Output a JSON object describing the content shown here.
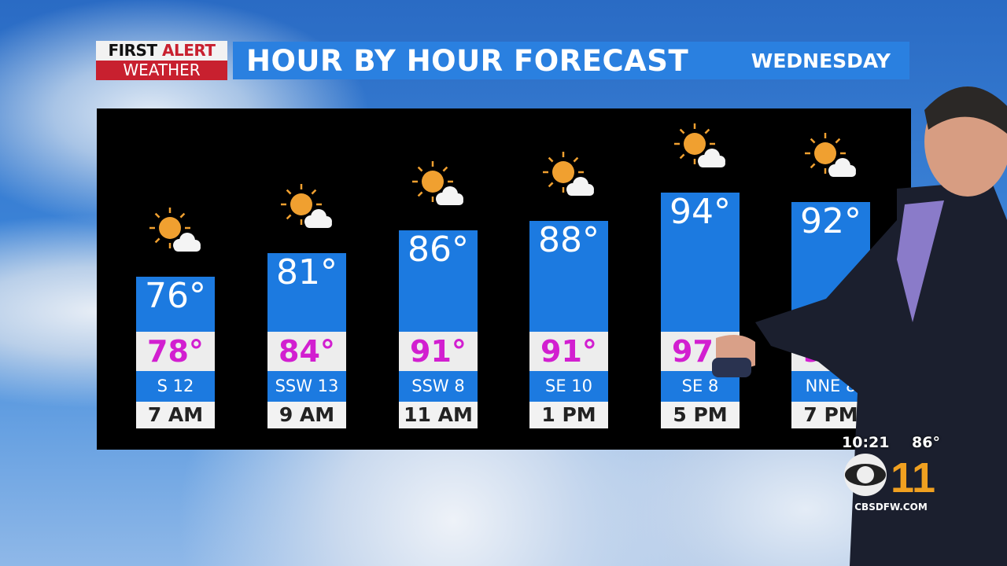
{
  "logo": {
    "line1a": "FIRST",
    "line1b": "ALERT",
    "line2": "WEATHER"
  },
  "header": {
    "title": "HOUR BY HOUR FORECAST",
    "day": "WEDNESDAY"
  },
  "chart_data": {
    "type": "bar",
    "categories": [
      "7 AM",
      "9 AM",
      "11 AM",
      "1 PM",
      "5 PM",
      "7 PM"
    ],
    "series": [
      {
        "name": "temperature",
        "values": [
          76,
          81,
          86,
          88,
          94,
          92
        ]
      },
      {
        "name": "feels like",
        "values": [
          78,
          84,
          91,
          91,
          97,
          99
        ]
      }
    ],
    "labels": {
      "temp": [
        "76°",
        "81°",
        "86°",
        "88°",
        "94°",
        "92°"
      ],
      "feels": [
        "78°",
        "84°",
        "91°",
        "91°",
        "97°",
        "99°"
      ]
    },
    "wind": [
      "S 12",
      "SSW 13",
      "SSW 8",
      "SE 10",
      "SE 8",
      "NNE 8"
    ],
    "icons": [
      "mostly-sunny-icon",
      "mostly-sunny-icon",
      "mostly-sunny-icon",
      "mostly-sunny-icon",
      "mostly-sunny-icon",
      "mostly-sunny-icon"
    ],
    "colors": {
      "bar": "#1c7ae0",
      "feels": "#d21fd0",
      "panel": "#000000"
    }
  },
  "bug": {
    "time": "10:21",
    "temp": "86°",
    "site": "CBSDFW.COM",
    "station": "CBS 11"
  }
}
